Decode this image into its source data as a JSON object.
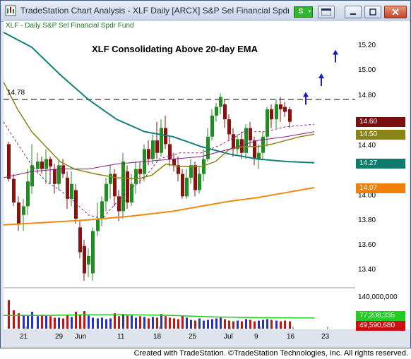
{
  "window": {
    "title": "TradeStation Chart Analysis - XLF Daily [ARCX] S&P Sel Financial Spdr ...",
    "symbol_link_label": "S",
    "controls": [
      "minimize",
      "maximize",
      "close"
    ]
  },
  "chart": {
    "legend": "XLF - Daily  S&P Sel Financial Spdr Fund",
    "headline": "XLF Consolidating Above 20-day EMA",
    "reference_line": {
      "value": "14.78",
      "level": 14.78
    },
    "price_axis_ticks": [
      "15.20",
      "15.00",
      "14.80",
      "14.40",
      "14.00",
      "13.80",
      "13.60",
      "13.40"
    ],
    "price_badges": [
      {
        "label": "14.60",
        "value": 14.6,
        "bg": "#7a1010",
        "fg": "#ffffff"
      },
      {
        "label": "14.50",
        "value": 14.5,
        "bg": "#8a8414",
        "fg": "#ffffff"
      },
      {
        "label": "14.27",
        "value": 14.27,
        "bg": "#0f7a6e",
        "fg": "#ffffff"
      },
      {
        "label": "14.07",
        "value": 14.07,
        "bg": "#f0800a",
        "fg": "#ffffff"
      }
    ],
    "volume_axis_tick": "140,000,000",
    "volume_badges": [
      {
        "label": "77,208,335",
        "bg": "#22cc22",
        "fg": "#ffffff"
      },
      {
        "label": "49,590,680",
        "bg": "#cc1111",
        "fg": "#ffffff"
      }
    ],
    "date_ticks": [
      "21",
      "29",
      "Jun",
      "11",
      "18",
      "25",
      "Jul",
      "9",
      "16",
      "23"
    ],
    "colors": {
      "up_candle": "#1f8f1f",
      "down_candle": "#8b1010",
      "ema_fast": "#8a8414",
      "ema_teal": "#11807a",
      "ema_purple": "#8a1a8a",
      "ema_slow": "#f08a12",
      "arrows": "#1a1acc"
    }
  },
  "footer": {
    "credit": "Created with TradeStation. ©TradeStation Technologies, Inc. All rights reserved."
  }
}
